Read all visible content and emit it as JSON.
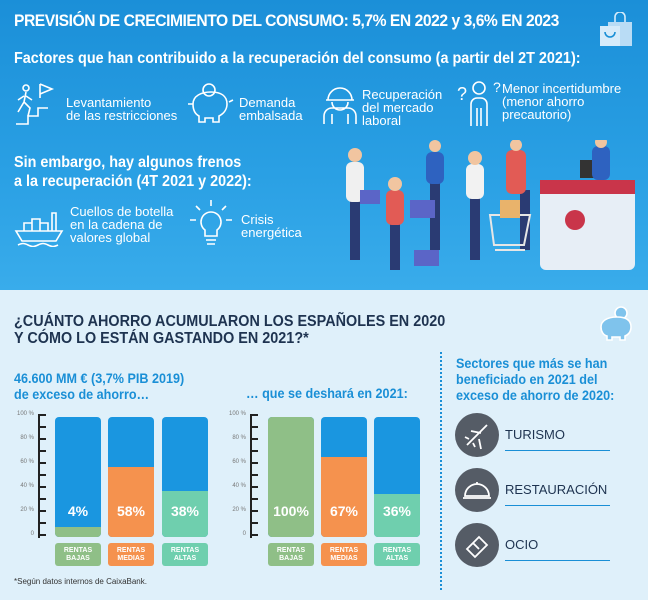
{
  "header": {
    "title": "PREVISIÓN DE CRECIMIENTO DEL CONSUMO: 5,7% EN 2022  y 3,6% EN 2023",
    "factors_title": "Factores que han contribuido a la recuperación del consumo (a partir del 2T 2021):",
    "factors": [
      {
        "icon": "stairs-runner-icon",
        "l1": "Levantamiento",
        "l2": "de las restricciones",
        "l3": ""
      },
      {
        "icon": "piggy-bank-icon",
        "l1": "Demanda",
        "l2": "embalsada",
        "l3": ""
      },
      {
        "icon": "worker-icon",
        "l1": "Recuperación",
        "l2": "del mercado",
        "l3": "laboral"
      },
      {
        "icon": "question-person-icon",
        "l1": "Menor incertidumbre",
        "l2": "(menor ahorro",
        "l3": "precautorio)"
      }
    ],
    "brakes_title_1": "Sin embargo, hay algunos frenos",
    "brakes_title_2": "a la recuperación (4T 2021 y 2022):",
    "brakes": [
      {
        "icon": "cargo-ship-icon",
        "l1": "Cuellos de botella",
        "l2": "en la cadena de",
        "l3": "valores global"
      },
      {
        "icon": "light-bulb-icon",
        "l1": "Crisis",
        "l2": "energética",
        "l3": ""
      }
    ]
  },
  "savings": {
    "title_1": "¿CUÁNTO AHORRO ACUMULARON LOS ESPAÑOLES EN 2020",
    "title_2": "Y CÓMO LO ESTÁN GASTANDO EN 2021?*",
    "left_sub_1": "46.600 MM € (3,7% PIB 2019)",
    "left_sub_2": "de exceso de ahorro…",
    "right_sub": "… que se deshará en 2021:"
  },
  "chart_data": [
    {
      "type": "bar",
      "title": "46.600 MM € (3,7% PIB 2019) de exceso de ahorro…",
      "categories": [
        "RENTAS BAJAS",
        "RENTAS MEDIAS",
        "RENTAS ALTAS"
      ],
      "values": [
        4,
        58,
        38
      ],
      "labels": [
        "4%",
        "58%",
        "38%"
      ],
      "yticks": [
        "100 %",
        "80 %",
        "60 %",
        "40 %",
        "20 %",
        "0"
      ],
      "ylim": [
        0,
        100
      ]
    },
    {
      "type": "bar",
      "title": "… que se deshará en 2021:",
      "categories": [
        "RENTAS BAJAS",
        "RENTAS MEDIAS",
        "RENTAS ALTAS"
      ],
      "values": [
        100,
        67,
        36
      ],
      "labels": [
        "100%",
        "67%",
        "36%"
      ],
      "yticks": [
        "100 %",
        "80 %",
        "60 %",
        "40 %",
        "20 %",
        "0"
      ],
      "ylim": [
        0,
        100
      ]
    }
  ],
  "colors": {
    "bajas": "#8fbf87",
    "medias": "#f5924e",
    "altas": "#6fcfae",
    "bar_bg": "#1a96e0"
  },
  "sectors": {
    "title_1": "Sectores que más se han",
    "title_2": "beneficiado en 2021 del",
    "title_3": "exceso de ahorro de 2020:",
    "items": [
      {
        "icon": "airplane-icon",
        "label": "TURISMO"
      },
      {
        "icon": "food-cloche-icon",
        "label": "RESTAURACIÓN"
      },
      {
        "icon": "tickets-icon",
        "label": "OCIO"
      }
    ]
  },
  "footnote": "*Según datos internos de CaixaBank."
}
